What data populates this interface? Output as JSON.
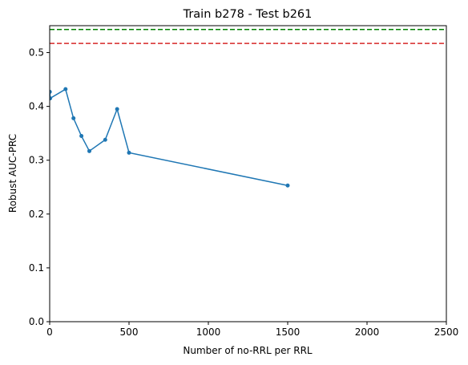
{
  "chart_data": {
    "type": "line",
    "title": "Train b278 - Test b261",
    "xlabel": "Number of no-RRL per RRL",
    "ylabel": "Robust AUC-PRC",
    "xlim": [
      0,
      2500
    ],
    "ylim": [
      0,
      0.55
    ],
    "xticks": [
      "0",
      "500",
      "1000",
      "1500",
      "2000",
      "2500"
    ],
    "yticks": [
      "0.0",
      "0.1",
      "0.2",
      "0.3",
      "0.4",
      "0.5"
    ],
    "grid": false,
    "series": [
      {
        "color": "#1f77b4",
        "marker": "circle",
        "x": [
          1,
          3,
          100,
          150,
          200,
          250,
          350,
          425,
          500,
          1500
        ],
        "y": [
          0.427,
          0.415,
          0.432,
          0.378,
          0.345,
          0.317,
          0.338,
          0.395,
          0.314,
          0.253
        ]
      }
    ],
    "reference_lines": [
      {
        "y": 0.543,
        "color": "#008000",
        "style": "dashed"
      },
      {
        "y": 0.517,
        "color": "#d62728",
        "style": "dashed"
      }
    ]
  }
}
